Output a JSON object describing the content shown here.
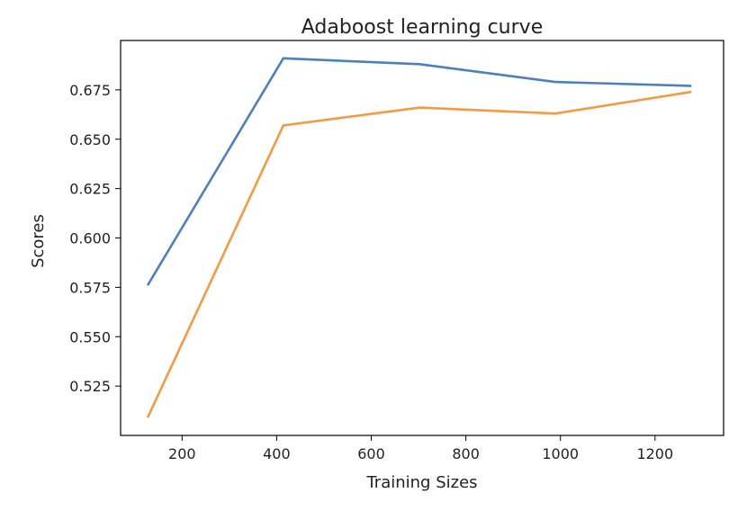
{
  "chart_data": {
    "type": "line",
    "title": "Adaboost learning curve",
    "xlabel": "Training Sizes",
    "ylabel": "Scores",
    "xlim": [
      70,
      1345
    ],
    "ylim": [
      0.5,
      0.7
    ],
    "x_ticks": [
      200,
      400,
      600,
      800,
      1000,
      1200
    ],
    "y_ticks": [
      0.525,
      0.55,
      0.575,
      0.6,
      0.625,
      0.65,
      0.675
    ],
    "grid": false,
    "legend": "none",
    "x": [
      127,
      414,
      702,
      989,
      1277
    ],
    "series": [
      {
        "color": "#4c80bd",
        "values": [
          0.576,
          0.691,
          0.688,
          0.679,
          0.677
        ]
      },
      {
        "color": "#f39a45",
        "values": [
          0.509,
          0.657,
          0.666,
          0.663,
          0.674
        ]
      }
    ]
  }
}
